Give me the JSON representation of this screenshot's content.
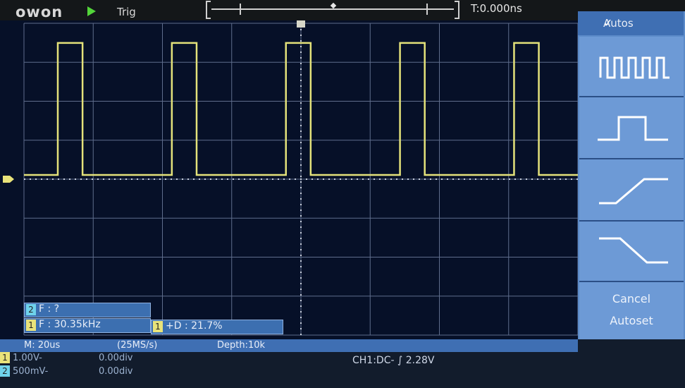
{
  "topbar": {
    "brand": "owon",
    "run_icon": "play-triangle",
    "trigger_status": "Trig",
    "trigger_position": "T:0.000ns"
  },
  "menu": {
    "title": "Autos",
    "items": [
      {
        "icon": "multi-period-icon"
      },
      {
        "icon": "single-period-icon"
      },
      {
        "icon": "rising-edge-icon"
      },
      {
        "icon": "falling-edge-icon"
      }
    ],
    "cancel_line1": "Cancel",
    "cancel_line2": "Autoset"
  },
  "measurements": {
    "ch2_freq": {
      "channel": "2",
      "text": "F :     ?"
    },
    "ch1_freq": {
      "channel": "1",
      "text": "F : 30.35kHz"
    },
    "ch1_duty": {
      "channel": "1",
      "text": "+D : 21.7%"
    }
  },
  "status": {
    "timebase": "M: 20us",
    "sample_rate": "(25MS/s)",
    "depth": "Depth:10k"
  },
  "channels": [
    {
      "id": "1",
      "scale": "1.00V-",
      "offset": "0.00div"
    },
    {
      "id": "2",
      "scale": "500mV-",
      "offset": "0.00div"
    }
  ],
  "trigger_info": "CH1:DC- ∫ 2.28V",
  "colors": {
    "trace": "#e4e27a",
    "screen_bg": "#061028",
    "grid": "#5f6d8c",
    "menu": "#5c8bc9",
    "ch1": "#e9e37a",
    "ch2": "#6fd2ea"
  },
  "waveform": {
    "frequency_khz": 30.35,
    "duty_percent": 21.7,
    "timebase_us_per_div": 20
  }
}
